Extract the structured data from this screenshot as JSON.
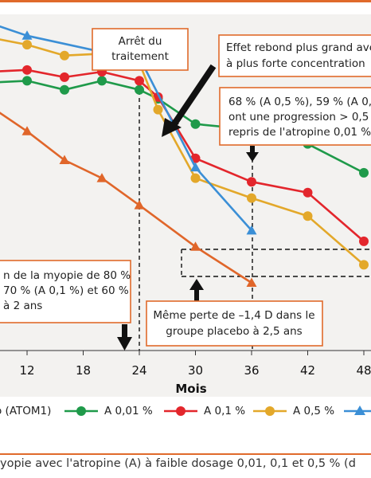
{
  "chart_data": {
    "type": "line",
    "xlabel": "Mois",
    "x_ticks": [
      12,
      18,
      24,
      30,
      36,
      42,
      48
    ],
    "x_tick_labels": [
      "12",
      "18",
      "24",
      "30",
      "36",
      "42",
      "48"
    ],
    "xlim": [
      8,
      49
    ],
    "ylim": [
      -1.6,
      0.0
    ],
    "ylabel": "",
    "series": [
      {
        "name": "o (ATOM1)",
        "color": "#e0662a",
        "marker": "triangle",
        "x": [
          8,
          12,
          16,
          20,
          24,
          30,
          36
        ],
        "y": [
          -0.42,
          -0.56,
          -0.72,
          -0.82,
          -0.97,
          -1.2,
          -1.4
        ]
      },
      {
        "name": "A 0,01 %",
        "color": "#1f9a4a",
        "marker": "circle",
        "x": [
          8,
          12,
          16,
          20,
          24,
          26,
          30,
          36,
          42,
          48
        ],
        "y": [
          -0.29,
          -0.28,
          -0.33,
          -0.28,
          -0.33,
          -0.38,
          -0.52,
          -0.55,
          -0.63,
          -0.79
        ]
      },
      {
        "name": "A 0,1 %",
        "color": "#e3262c",
        "marker": "circle",
        "x": [
          8,
          12,
          16,
          20,
          24,
          26,
          30,
          36,
          42,
          48
        ],
        "y": [
          -0.23,
          -0.22,
          -0.26,
          -0.23,
          -0.28,
          -0.37,
          -0.71,
          -0.84,
          -0.9,
          -1.17
        ]
      },
      {
        "name": "A 0,5 %",
        "color": "#e3a82a",
        "marker": "circle",
        "x": [
          8,
          12,
          16,
          20,
          24,
          26,
          30,
          36,
          42,
          48
        ],
        "y": [
          -0.04,
          -0.08,
          -0.14,
          -0.13,
          -0.18,
          -0.44,
          -0.82,
          -0.93,
          -1.03,
          -1.3
        ]
      },
      {
        "name": "",
        "color": "#3b8fd6",
        "marker": "triangle",
        "x": [
          8,
          12,
          20,
          24,
          30,
          36
        ],
        "y": [
          0.04,
          -0.03,
          -0.12,
          -0.15,
          -0.76,
          -1.11
        ]
      }
    ],
    "annotations": [
      "Arrêt du traitement",
      "Effet rebond plus grand avec la plus forte concentration",
      "68 % (A 0,5 %), 59 % (A 0,1 %) ont une progression > 0,5 D ; repris de l'atropine 0,01 %",
      "Même perte de −1,4 D dans le groupe placebo à 2,5 ans",
      "de la myopie de 80 % ; 70 % (A 0,1 %) et 60 % à 2 ans"
    ]
  },
  "annotations": {
    "arret_line1": "Arrêt du",
    "arret_line2": "traitement",
    "rebond_line1": "Effet rebond plus grand avec la",
    "rebond_line2": "à plus forte concentration",
    "pct_line1": "68 % (A 0,5 %), 59 % (A 0,1 %)",
    "pct_line2": "ont une progression > 0,5 D ;",
    "pct_line3": "repris de l'atropine 0,01 %",
    "left_line1": "n de la myopie de 80 %",
    "left_line2": "70 % (A 0,1 %) et 60 %",
    "left_line3": "à 2 ans",
    "meme_line1": "Même perte de –1,4 D dans le",
    "meme_line2": "groupe placebo à 2,5 ans"
  },
  "legend": {
    "placebo": "o (ATOM1)",
    "a001": "A 0,01 %",
    "a01": "A 0,1 %",
    "a05": "A 0,5 %"
  },
  "caption": "yopie avec l'atropine (A) à faible dosage 0,01, 0,1 et 0,5 % (d"
}
